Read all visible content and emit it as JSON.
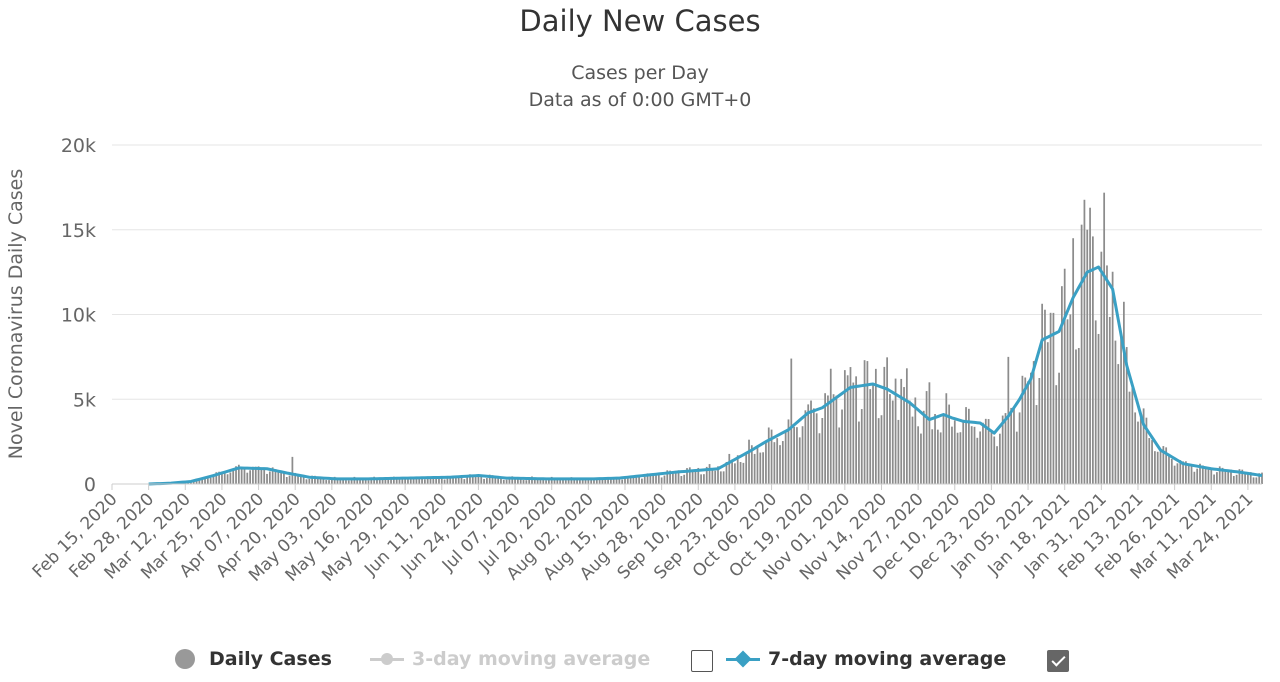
{
  "title": "Daily New Cases",
  "subtitle_1": "Cases per Day",
  "subtitle_2": "Data as of 0:00 GMT+0",
  "colors": {
    "bars": "#8c8c8c",
    "ma7": "#3aa0c4",
    "ma3_disabled": "#cccccc",
    "grid": "#e6e6e6"
  },
  "legend": {
    "daily": "Daily Cases",
    "ma3": "3-day moving average",
    "ma7": "7-day moving average",
    "ma3_checked": false,
    "ma7_checked": true
  },
  "chart_data": {
    "type": "bar",
    "title": "Daily New Cases",
    "ylabel": "Novel Coronavirus Daily Cases",
    "xlabel": "",
    "ylim": [
      0,
      20000
    ],
    "yticks": [
      0,
      5000,
      10000,
      15000,
      20000
    ],
    "ytick_labels": [
      "0",
      "5k",
      "10k",
      "15k",
      "20k"
    ],
    "x_start": "2020-02-15",
    "x_end": "2021-03-29",
    "x_tick_labels": [
      "Feb 15, 2020",
      "Feb 28, 2020",
      "Mar 12, 2020",
      "Mar 25, 2020",
      "Apr 07, 2020",
      "Apr 20, 2020",
      "May 03, 2020",
      "May 16, 2020",
      "May 29, 2020",
      "Jun 11, 2020",
      "Jun 24, 2020",
      "Jul 07, 2020",
      "Jul 20, 2020",
      "Aug 02, 2020",
      "Aug 15, 2020",
      "Aug 28, 2020",
      "Sep 10, 2020",
      "Sep 23, 2020",
      "Oct 06, 2020",
      "Oct 19, 2020",
      "Nov 01, 2020",
      "Nov 14, 2020",
      "Nov 27, 2020",
      "Dec 10, 2020",
      "Dec 23, 2020",
      "Jan 05, 2021",
      "Jan 18, 2021",
      "Jan 31, 2021",
      "Feb 13, 2021",
      "Feb 26, 2021",
      "Mar 11, 2021",
      "Mar 24, 2021"
    ],
    "tick_interval_days": 13,
    "series": [
      {
        "name": "7-day moving average",
        "type": "line",
        "anchor_days": [
          0,
          13,
          21,
          28,
          35,
          45,
          55,
          62,
          70,
          80,
          90,
          105,
          120,
          130,
          140,
          155,
          170,
          180,
          200,
          215,
          227,
          232,
          240,
          247,
          252,
          262,
          270,
          275,
          283,
          290,
          295,
          298,
          302,
          308,
          313,
          318,
          322,
          326,
          330,
          336,
          341,
          346,
          350,
          355,
          360,
          366,
          372,
          380,
          390,
          400,
          408
        ],
        "anchor_values": [
          0,
          0,
          50,
          150,
          450,
          950,
          900,
          650,
          400,
          300,
          300,
          350,
          400,
          500,
          350,
          300,
          300,
          350,
          700,
          900,
          2000,
          2500,
          3200,
          4200,
          4500,
          5700,
          5900,
          5600,
          4800,
          3800,
          4100,
          3900,
          3700,
          3600,
          3000,
          4000,
          5000,
          6200,
          8500,
          9000,
          11000,
          12500,
          12800,
          11500,
          7000,
          3500,
          2000,
          1200,
          900,
          700,
          500
        ]
      },
      {
        "name": "Daily Cases",
        "type": "bar",
        "note": "daily bars follow the 7-day average with weekday variation",
        "spikes": [
          {
            "day": 64,
            "value": 1600
          },
          {
            "day": 241,
            "value": 7400
          },
          {
            "day": 255,
            "value": 6800
          },
          {
            "day": 262,
            "value": 6900
          },
          {
            "day": 280,
            "value": 6200
          },
          {
            "day": 290,
            "value": 6000
          },
          {
            "day": 318,
            "value": 7500
          },
          {
            "day": 333,
            "value": 10100
          },
          {
            "day": 341,
            "value": 14500
          },
          {
            "day": 344,
            "value": 15300
          },
          {
            "day": 346,
            "value": 15000
          },
          {
            "day": 347,
            "value": 16300
          }
        ]
      },
      {
        "name": "3-day moving average",
        "type": "line",
        "enabled": false
      }
    ]
  }
}
